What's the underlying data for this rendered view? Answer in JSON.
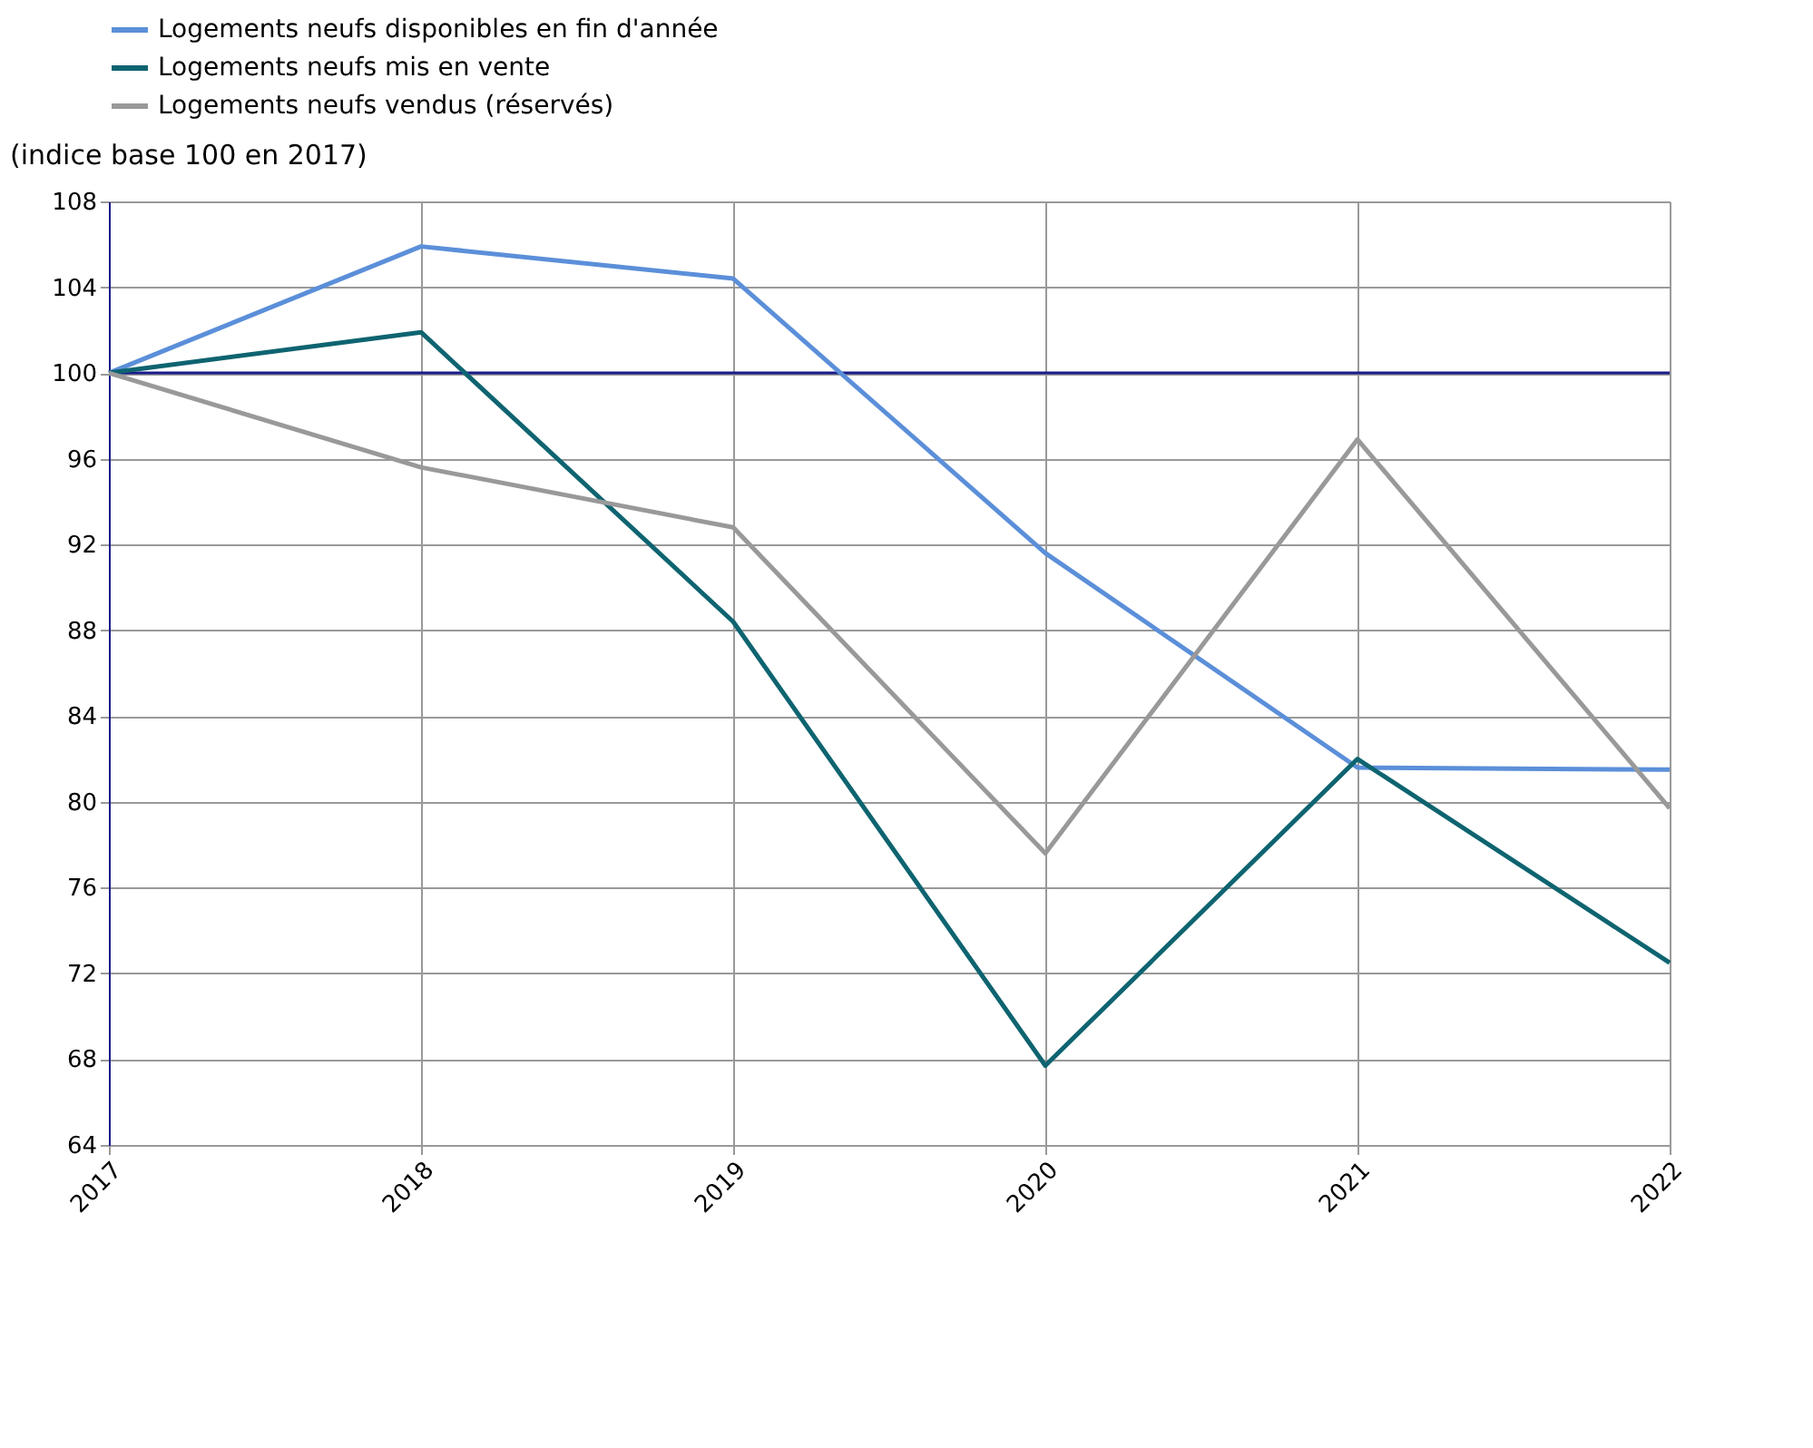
{
  "chart_data": {
    "type": "line",
    "ylabel": "(indice base 100 en 2017)",
    "categories": [
      "2017",
      "2018",
      "2019",
      "2020",
      "2021",
      "2022"
    ],
    "series": [
      {
        "name": "Logements neufs disponibles en fin d'année",
        "color": "#5b8fd9",
        "values": [
          100,
          105.9,
          104.4,
          91.6,
          81.6,
          81.5
        ]
      },
      {
        "name": "Logements neufs mis en vente",
        "color": "#0e6470",
        "values": [
          100,
          101.9,
          88.4,
          67.7,
          82.0,
          72.5
        ]
      },
      {
        "name": "Logements neufs vendus (réservés)",
        "color": "#999999",
        "values": [
          100,
          95.6,
          92.8,
          77.6,
          96.9,
          79.7
        ]
      }
    ],
    "ylim": [
      64,
      108
    ],
    "yticks": [
      64,
      68,
      72,
      76,
      80,
      84,
      88,
      92,
      96,
      100,
      104,
      108
    ],
    "ref_lines": [
      {
        "axis": "y",
        "value": 100,
        "color": "#1a1a8c"
      }
    ],
    "grid": true,
    "legend": "top left"
  }
}
